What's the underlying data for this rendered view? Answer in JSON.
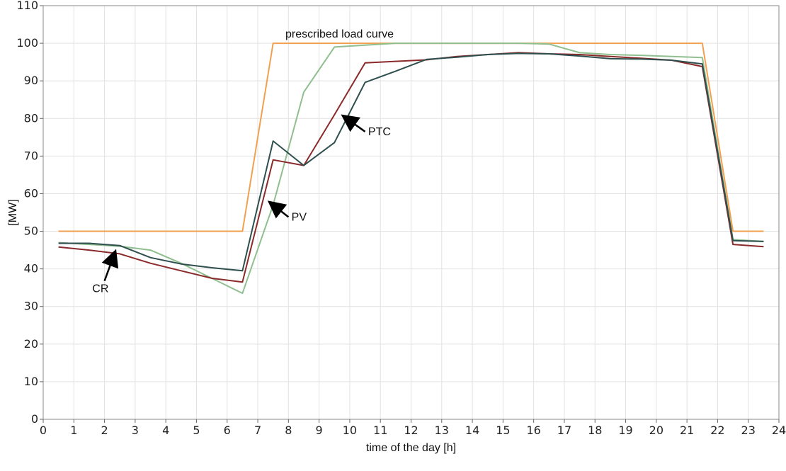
{
  "chart_data": {
    "type": "line",
    "xlabel": "time of the day [h]",
    "ylabel": "[MW]",
    "xlim": [
      0,
      24
    ],
    "ylim": [
      0,
      110
    ],
    "xticks": [
      "0",
      "1",
      "2",
      "3",
      "4",
      "5",
      "6",
      "7",
      "8",
      "9",
      "10",
      "11",
      "12",
      "13",
      "14",
      "15",
      "16",
      "17",
      "18",
      "19",
      "20",
      "21",
      "22",
      "23",
      "24"
    ],
    "yticks": [
      "0",
      "10",
      "20",
      "30",
      "40",
      "50",
      "60",
      "70",
      "80",
      "90",
      "100",
      "110"
    ],
    "grid": true,
    "series": [
      {
        "key": "prescribed",
        "color": "#f0a050",
        "x": [
          0.5,
          6.5,
          7.5,
          21.5,
          22.5,
          23.5
        ],
        "y": [
          50,
          50,
          100,
          100,
          50,
          50
        ]
      },
      {
        "key": "pv",
        "color": "#8fbf8f",
        "x": [
          0.5,
          1.5,
          2.5,
          3.5,
          4.5,
          5.5,
          6.5,
          7.5,
          8.5,
          9.5,
          10.5,
          11.5,
          12.5,
          13.5,
          14.5,
          15.5,
          16.5,
          17.5,
          18.5,
          19.5,
          20.5,
          21.5,
          22.5,
          23.5
        ],
        "y": [
          47,
          46.5,
          46,
          45,
          41.5,
          37.5,
          33.5,
          57,
          87,
          99,
          99.5,
          100,
          100,
          100,
          100,
          100,
          99.8,
          97.5,
          97,
          96.8,
          96.5,
          96.2,
          47.8,
          47.3
        ]
      },
      {
        "key": "cr",
        "color": "#8b2a2a",
        "x": [
          0.5,
          1.5,
          2.5,
          3.5,
          4.5,
          5.5,
          6.5,
          7.5,
          8.5,
          9.5,
          10.5,
          11.5,
          12.5,
          13.5,
          14.5,
          15.5,
          16.5,
          17.5,
          18.5,
          19.5,
          20.5,
          21.5,
          22.5,
          23.5
        ],
        "y": [
          45.8,
          45,
          44,
          41.5,
          39.5,
          37.5,
          36.5,
          69,
          67.5,
          81,
          94.8,
          95.2,
          95.6,
          96.5,
          97,
          97.5,
          97.2,
          97,
          96.5,
          96,
          95.5,
          93.8,
          46.5,
          45.9
        ]
      },
      {
        "key": "ptc",
        "color": "#2f4f4f",
        "x": [
          0.5,
          1.5,
          2.5,
          3.5,
          4.5,
          5.5,
          6.5,
          7.5,
          8.5,
          9.5,
          10.5,
          11.5,
          12.5,
          13.5,
          14.5,
          15.5,
          16.5,
          17.5,
          18.5,
          19.5,
          20.5,
          21.5,
          22.5,
          23.5
        ],
        "y": [
          46.8,
          46.8,
          46.2,
          43,
          41.3,
          40.3,
          39.5,
          74,
          67.5,
          73.6,
          89.6,
          92.6,
          95.7,
          96.3,
          97,
          97.3,
          97.2,
          96.6,
          95.9,
          95.8,
          95.5,
          94.5,
          47.5,
          47.3
        ]
      }
    ],
    "annotations": [
      {
        "text": "prescribed load curve",
        "x": 7.9,
        "y": 101.5,
        "arrow": false
      },
      {
        "text": "PTC",
        "x": 10.6,
        "y": 75.5,
        "arrow": true,
        "arrow_from": [
          10.5,
          76.5
        ],
        "arrow_to": [
          9.9,
          80
        ]
      },
      {
        "text": "PV",
        "x": 8.1,
        "y": 52.8,
        "arrow": true,
        "arrow_from": [
          8.0,
          53.8
        ],
        "arrow_to": [
          7.5,
          57
        ]
      },
      {
        "text": "CR",
        "x": 1.6,
        "y": 33.8,
        "arrow": true,
        "arrow_from": [
          2.0,
          36.8
        ],
        "arrow_to": [
          2.3,
          43.5
        ]
      }
    ]
  }
}
